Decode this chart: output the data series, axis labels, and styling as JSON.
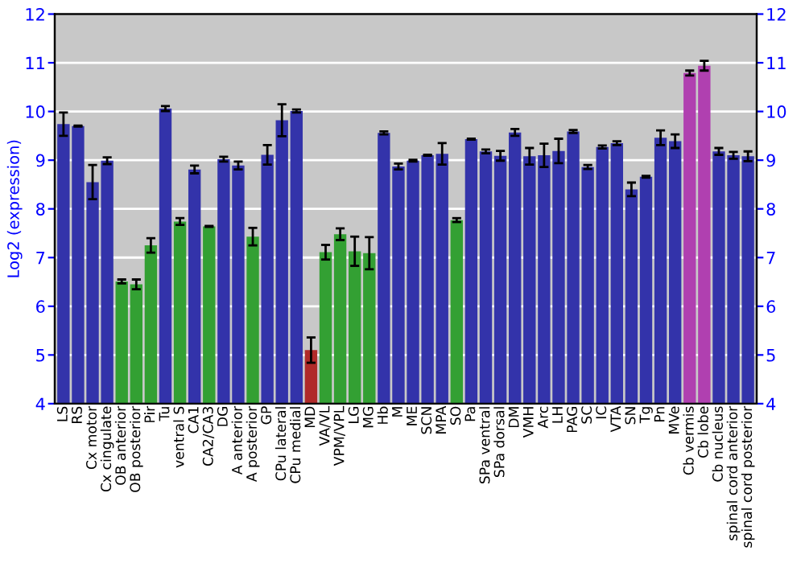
{
  "chart_data": {
    "type": "bar",
    "ylabel": "Log2 (expression)",
    "categories": [
      "LS",
      "RS",
      "Cx motor",
      "Cx cingulate",
      "OB anterior",
      "OB posterior",
      "Pir",
      "Tu",
      "ventral S",
      "CA1",
      "CA2/CA3",
      "DG",
      "A anterior",
      "A posterior",
      "GP",
      "CPu lateral",
      "CPu medial",
      "MD",
      "VA/VL",
      "VPM/VPL",
      "LG",
      "MG",
      "Hb",
      "M",
      "ME",
      "SCN",
      "MPA",
      "SO",
      "Pa",
      "SPa ventral",
      "SPa dorsal",
      "DM",
      "VMH",
      "Arc",
      "LH",
      "PAG",
      "SC",
      "IC",
      "VTA",
      "SN",
      "Tg",
      "Pn",
      "MVe",
      "Cb vermis",
      "Cb lobe",
      "Cb nucleus",
      "spinal cord anterior",
      "spinal cord posterior"
    ],
    "values": [
      9.74,
      9.7,
      8.55,
      8.99,
      6.51,
      6.45,
      7.25,
      10.06,
      7.74,
      8.81,
      7.64,
      9.02,
      8.89,
      7.43,
      9.11,
      9.82,
      10.01,
      5.1,
      7.11,
      7.48,
      7.13,
      7.09,
      9.56,
      8.87,
      8.99,
      9.1,
      9.13,
      7.77,
      9.43,
      9.18,
      9.09,
      9.57,
      9.08,
      9.1,
      9.19,
      9.59,
      8.86,
      9.27,
      9.35,
      8.4,
      8.66,
      9.46,
      9.39,
      10.79,
      10.94,
      9.18,
      9.1,
      9.08
    ],
    "errors": [
      0.24,
      0.01,
      0.35,
      0.07,
      0.04,
      0.1,
      0.15,
      0.05,
      0.07,
      0.08,
      0.01,
      0.05,
      0.08,
      0.18,
      0.2,
      0.33,
      0.03,
      0.26,
      0.15,
      0.12,
      0.3,
      0.33,
      0.03,
      0.06,
      0.02,
      0.01,
      0.22,
      0.04,
      0.01,
      0.04,
      0.1,
      0.07,
      0.17,
      0.24,
      0.25,
      0.03,
      0.04,
      0.03,
      0.04,
      0.14,
      0.02,
      0.15,
      0.14,
      0.05,
      0.1,
      0.07,
      0.07,
      0.1
    ],
    "colors": [
      "#3333aa",
      "#3333aa",
      "#3333aa",
      "#3333aa",
      "#33a033",
      "#33a033",
      "#33a033",
      "#3333aa",
      "#33a033",
      "#3333aa",
      "#33a033",
      "#3333aa",
      "#3333aa",
      "#33a033",
      "#3333aa",
      "#3333aa",
      "#3333aa",
      "#b02a2a",
      "#33a033",
      "#33a033",
      "#33a033",
      "#33a033",
      "#3333aa",
      "#3333aa",
      "#3333aa",
      "#3333aa",
      "#3333aa",
      "#33a033",
      "#3333aa",
      "#3333aa",
      "#3333aa",
      "#3333aa",
      "#3333aa",
      "#3333aa",
      "#3333aa",
      "#3333aa",
      "#3333aa",
      "#3333aa",
      "#3333aa",
      "#3333aa",
      "#3333aa",
      "#3333aa",
      "#3333aa",
      "#b040b0",
      "#b040b0",
      "#3333aa",
      "#3333aa",
      "#3333aa"
    ],
    "ylim": [
      4,
      12
    ],
    "yticks": [
      4,
      5,
      6,
      7,
      8,
      9,
      10,
      11,
      12
    ],
    "y2lim": [
      4,
      12
    ],
    "y2ticks": [
      4,
      5,
      6,
      7,
      8,
      9,
      10,
      11,
      12
    ],
    "grid": "y"
  }
}
